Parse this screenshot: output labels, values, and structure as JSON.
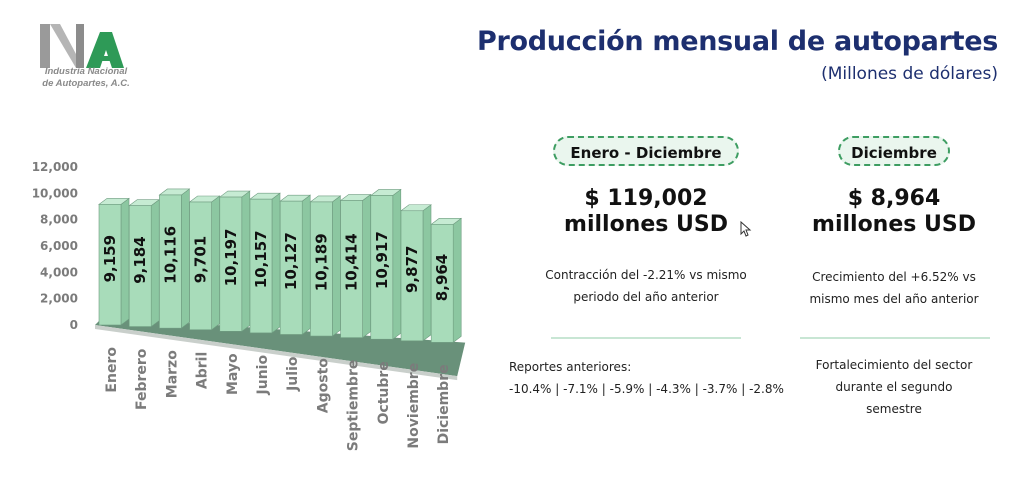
{
  "header": {
    "title": "Producción mensual de autopartes",
    "subtitle": "(Millones de dólares)",
    "logo_caption_line1": "Industria Nacional",
    "logo_caption_line2": "de Autopartes, A.C.",
    "brand_color": "#1d2f6f",
    "accent_color": "#3e9d62"
  },
  "annual": {
    "pill": "Enero - Diciembre",
    "amount": "$ 119,002",
    "unit": "millones USD",
    "note_line1": "Contracción del -2.21% vs mismo",
    "note_line2": "periodo del año anterior",
    "previous_label": "Reportes anteriores:",
    "previous_values": "-10.4% | -7.1% | -5.9% | -4.3% | -3.7% | -2.8%"
  },
  "monthly": {
    "pill": "Diciembre",
    "amount": "$ 8,964",
    "unit": "millones USD",
    "note_line1": "Crecimiento del +6.52% vs",
    "note_line2": "mismo mes del año anterior",
    "footer_line1": "Fortalecimiento del sector",
    "footer_line2": "durante el segundo",
    "footer_line3": "semestre"
  },
  "chart_data": {
    "type": "bar",
    "categories": [
      "Enero",
      "Febrero",
      "Marzo",
      "Abril",
      "Mayo",
      "Junio",
      "Julio",
      "Agosto",
      "Septiembre",
      "Octubre",
      "Noviembre",
      "Diciembre"
    ],
    "values": [
      9159,
      9184,
      10116,
      9701,
      10197,
      10157,
      10127,
      10189,
      10414,
      10917,
      9877,
      8964
    ],
    "data_labels": [
      "9,159",
      "9,184",
      "10,116",
      "9,701",
      "10,197",
      "10,157",
      "10,127",
      "10,189",
      "10,414",
      "10,917",
      "9,877",
      "8,964"
    ],
    "yticks": [
      "0",
      "2,000",
      "4,000",
      "6,000",
      "8,000",
      "10,000",
      "12,000"
    ],
    "ylim": [
      0,
      12000
    ],
    "grid": false,
    "bar_color": "#a8dcba",
    "bar_edge_color": "#6f9c80"
  }
}
